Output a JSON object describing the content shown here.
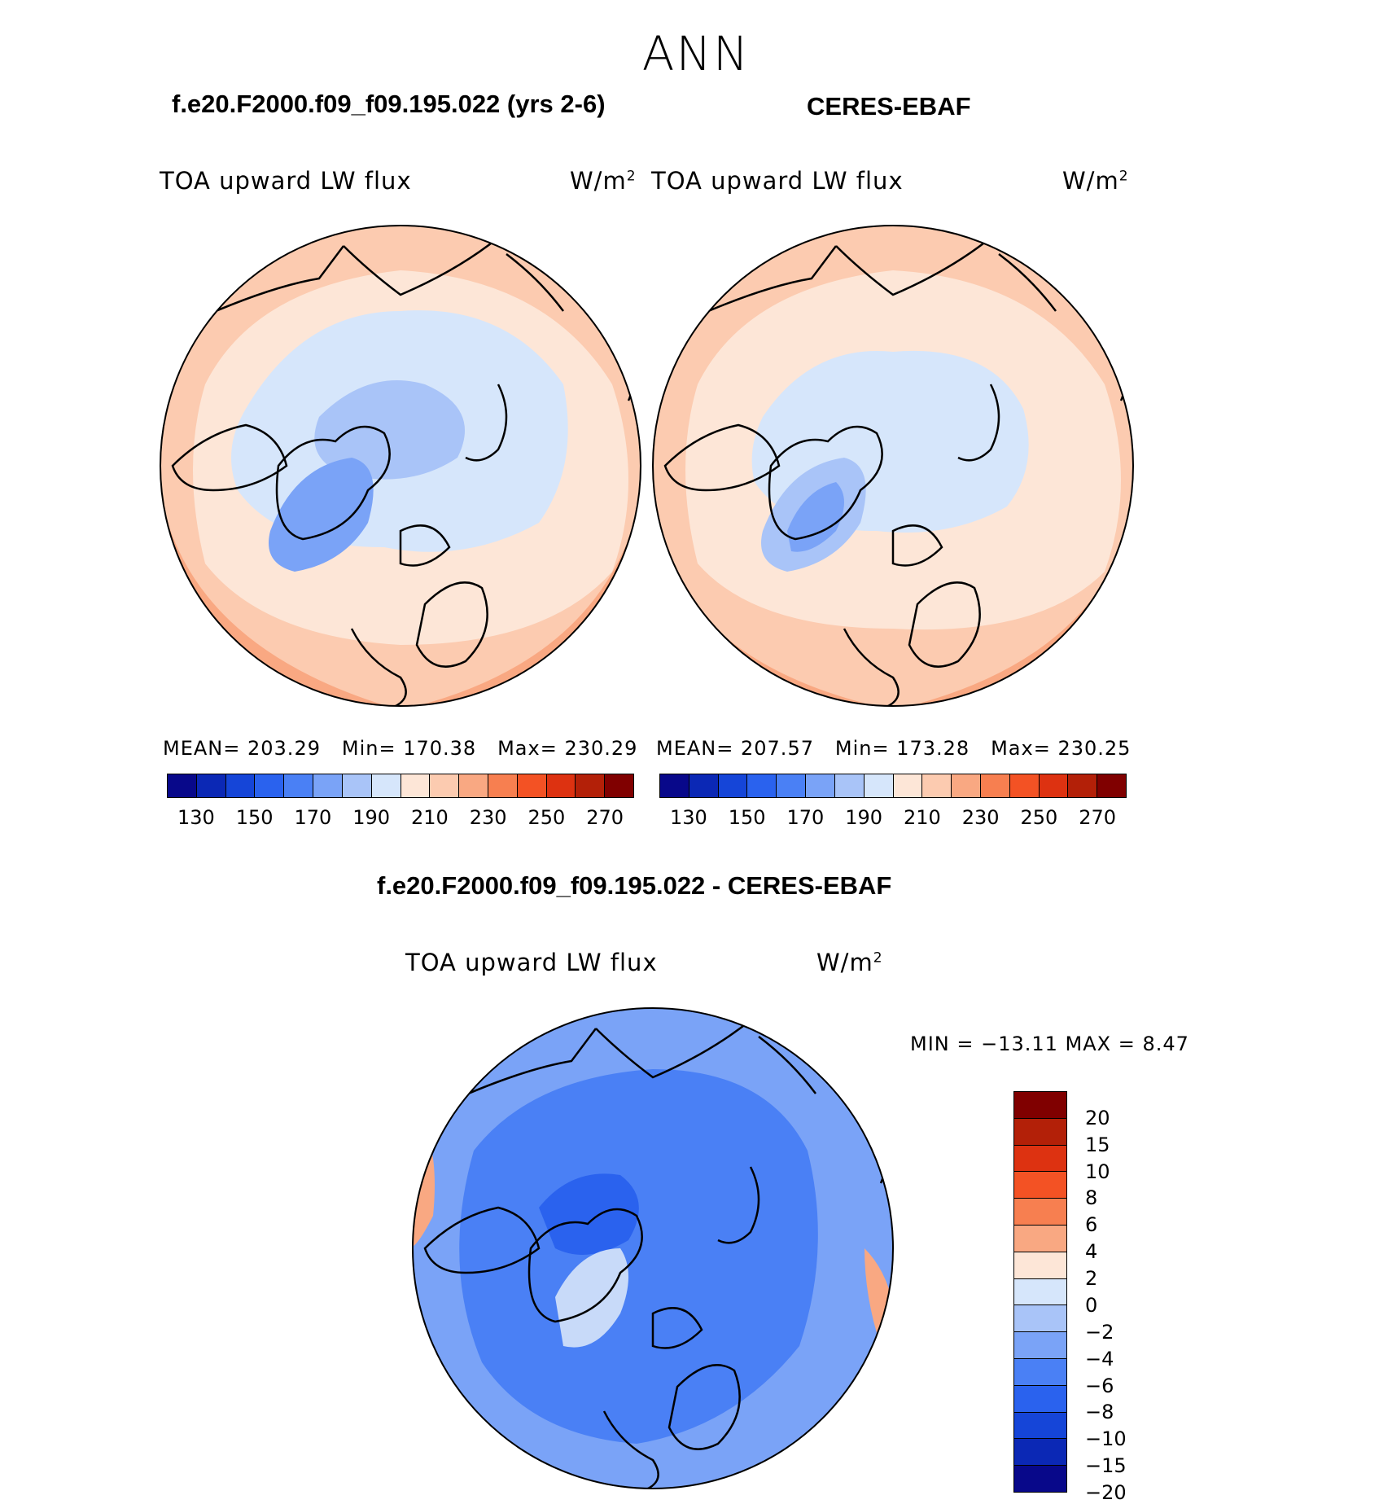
{
  "page": {
    "season": "ANN",
    "left_title": "f.e20.F2000.f09_f09.195.022 (yrs 2-6)",
    "right_title": "CERES-EBAF",
    "diff_title": "f.e20.F2000.f09_f09.195.022 - CERES-EBAF"
  },
  "panels": [
    {
      "variable": "TOA upward LW flux",
      "units": "W/m",
      "units_sup": "2",
      "mean_label": "MEAN=",
      "mean": "203.29",
      "min_label": "Min=",
      "min": "170.38",
      "max_label": "Max=",
      "max": "230.29"
    },
    {
      "variable": "TOA upward LW flux",
      "units": "W/m",
      "units_sup": "2",
      "mean_label": "MEAN=",
      "mean": "207.57",
      "min_label": "Min=",
      "min": "173.28",
      "max_label": "Max=",
      "max": "230.25"
    }
  ],
  "diff_panel": {
    "variable": "TOA upward LW flux",
    "units": "W/m",
    "units_sup": "2",
    "minmax_text": "MIN = −13.11 MAX =    8.47"
  },
  "colorbar_abs": {
    "colors": [
      "#08088a",
      "#0b28b5",
      "#1545d8",
      "#2a62ee",
      "#4a80f5",
      "#7aa3f7",
      "#a9c4f8",
      "#d6e6fb",
      "#fde6d7",
      "#fccbb0",
      "#f9a882",
      "#f77f50",
      "#f35224",
      "#dd3211",
      "#b32008",
      "#800000"
    ],
    "ticks": [
      "130",
      "150",
      "170",
      "190",
      "210",
      "230",
      "250",
      "270"
    ]
  },
  "colorbar_diff": {
    "colors": [
      "#800000",
      "#b32008",
      "#dd3211",
      "#f35224",
      "#f77f50",
      "#f9a882",
      "#fde6d7",
      "#d6e6fb",
      "#a9c4f8",
      "#7aa3f7",
      "#4a80f5",
      "#2a62ee",
      "#1545d8",
      "#0b28b5",
      "#08088a"
    ],
    "ticks": [
      "20",
      "15",
      "10",
      "8",
      "6",
      "4",
      "2",
      "0",
      "−2",
      "−4",
      "−6",
      "−8",
      "−10",
      "−15",
      "−20"
    ]
  },
  "map_colors": {
    "warm1": "#fde6d7",
    "warm2": "#fccbb0",
    "warm3": "#f9a882",
    "cool1": "#d6e6fb",
    "cool2": "#a9c4f8",
    "cool3": "#7aa3f7",
    "dcool1": "#4a80f5",
    "dcool2": "#2a62ee",
    "dcool0": "#7aa3f7",
    "dwarm": "#f9a882"
  }
}
